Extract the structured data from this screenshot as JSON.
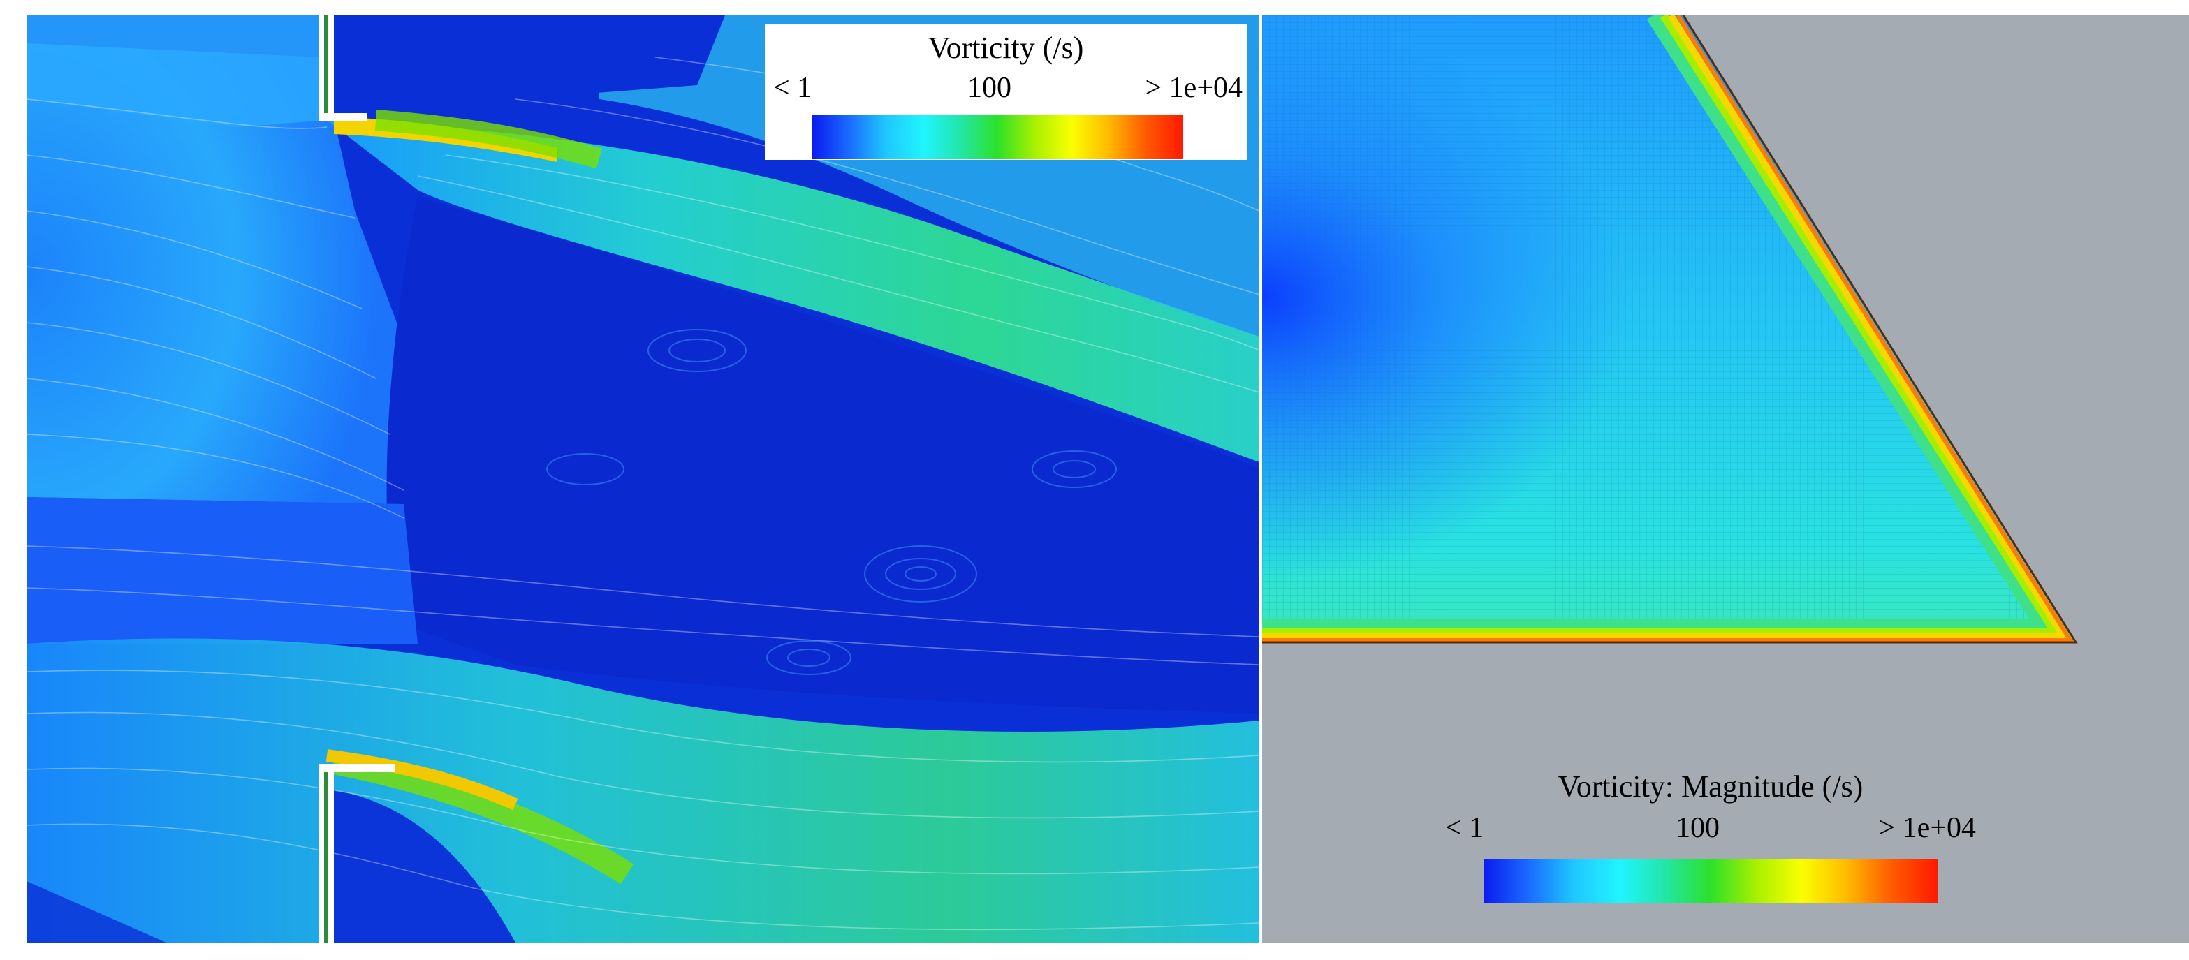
{
  "left_panel": {
    "legend": {
      "title": "Vorticity (/s)",
      "tick_min": "< 1",
      "tick_mid": "100",
      "tick_max": "> 1e+04"
    }
  },
  "right_panel": {
    "legend": {
      "title": "Vorticity: Magnitude (/s)",
      "tick_min": "< 1",
      "tick_mid": "100",
      "tick_max": "> 1e+04"
    }
  },
  "colormap": [
    "#0b1bf0",
    "#1a6cff",
    "#1fc8ff",
    "#20f4ff",
    "#22e6a8",
    "#2de02a",
    "#a7f000",
    "#f9ff00",
    "#ffba00",
    "#ff5b00",
    "#ff1a00"
  ],
  "background_color": "#a5abb2"
}
